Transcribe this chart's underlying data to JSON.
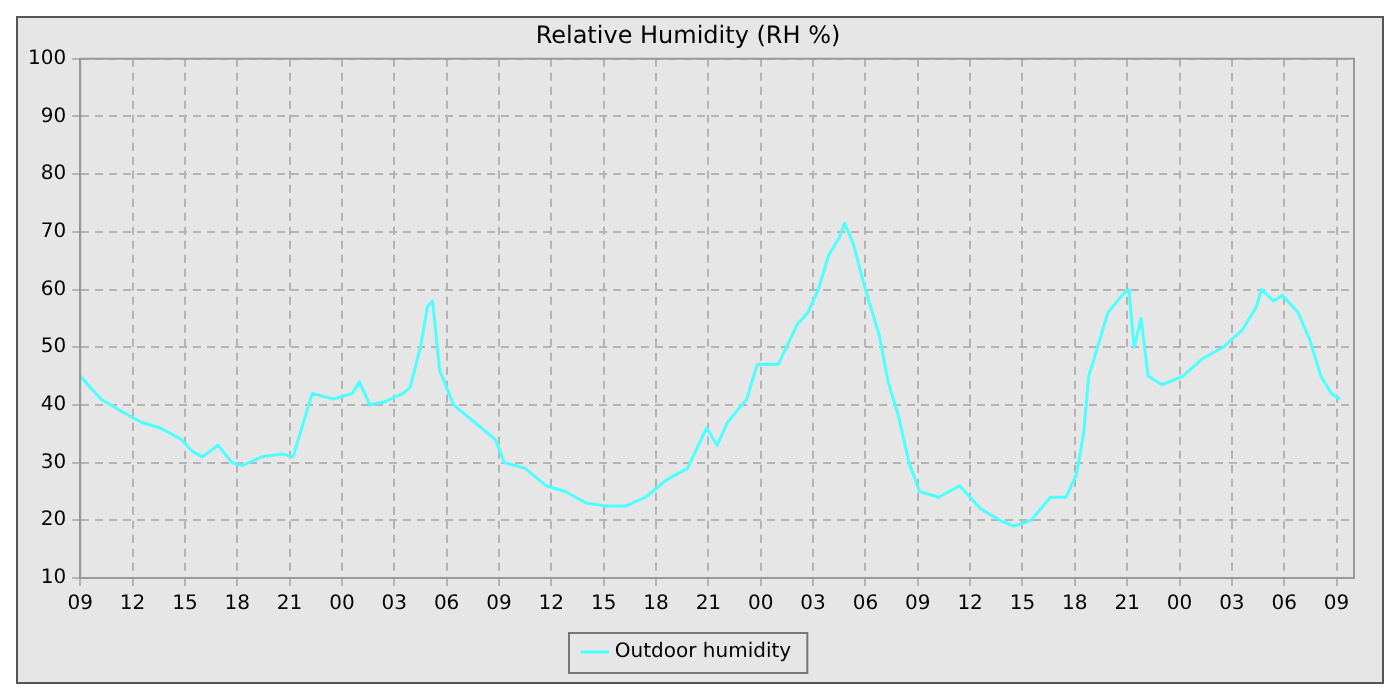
{
  "chart_data": {
    "type": "line",
    "title": "Relative Humidity (RH %)",
    "x": [
      9,
      10.2,
      11.3,
      12.5,
      13.6,
      14.8,
      15.4,
      16,
      16.9,
      17.7,
      18.3,
      19.4,
      20.6,
      21.2,
      21.7,
      22.3,
      23.5,
      24.6,
      25,
      25.6,
      26.4,
      27.5,
      27.9,
      28.5,
      28.9,
      29.2,
      29.6,
      30.4,
      31.6,
      32.8,
      33.3,
      34.5,
      35.7,
      36.8,
      38,
      39.1,
      40.3,
      41.4,
      42.6,
      43.8,
      44.9,
      45.5,
      46.1,
      47.2,
      47.8,
      49,
      50.1,
      50.7,
      51.3,
      51.9,
      52.5,
      52.8,
      53.3,
      54,
      54.8,
      55.3,
      55.9,
      56.5,
      57.1,
      58.2,
      59.4,
      60.6,
      61.7,
      62.5,
      63.5,
      64.6,
      65.5,
      66.1,
      66.5,
      66.8,
      67.3,
      67.9,
      68.7,
      69.1,
      69.4,
      69.8,
      70.2,
      71,
      72.2,
      73.3,
      74.5,
      75.6,
      76.4,
      76.7,
      77.4,
      77.9,
      78.8,
      79.5,
      80.1,
      80.7,
      81.2
    ],
    "series": [
      {
        "name": "Outdoor humidity",
        "color": "#4dffff",
        "values": [
          45,
          41,
          39,
          37,
          36,
          34,
          32,
          31,
          33,
          30,
          29.5,
          31,
          31.5,
          31,
          36,
          42,
          41,
          42,
          44,
          40,
          40.5,
          42,
          43,
          50,
          57,
          58,
          46,
          40,
          37,
          34,
          30,
          29,
          26,
          25,
          23,
          22.5,
          22.5,
          24,
          27,
          29,
          36,
          33,
          37,
          41,
          47,
          47,
          54,
          56,
          60,
          66,
          69,
          71.5,
          68,
          60,
          52,
          44,
          38,
          30,
          25,
          24,
          26,
          22,
          20,
          19,
          20,
          24,
          24,
          28,
          35,
          45,
          50,
          56,
          59,
          60,
          50,
          55,
          45,
          43.5,
          45,
          48,
          50,
          53,
          57,
          60,
          58,
          59,
          56,
          51,
          45,
          42,
          41
        ]
      }
    ],
    "xlim": [
      9,
      82
    ],
    "xticks": [
      {
        "value": 9,
        "label": "09"
      },
      {
        "value": 12,
        "label": "12"
      },
      {
        "value": 15,
        "label": "15"
      },
      {
        "value": 18,
        "label": "18"
      },
      {
        "value": 21,
        "label": "21"
      },
      {
        "value": 24,
        "label": "00"
      },
      {
        "value": 27,
        "label": "03"
      },
      {
        "value": 30,
        "label": "06"
      },
      {
        "value": 33,
        "label": "09"
      },
      {
        "value": 36,
        "label": "12"
      },
      {
        "value": 39,
        "label": "15"
      },
      {
        "value": 42,
        "label": "18"
      },
      {
        "value": 45,
        "label": "21"
      },
      {
        "value": 48,
        "label": "00"
      },
      {
        "value": 51,
        "label": "03"
      },
      {
        "value": 54,
        "label": "06"
      },
      {
        "value": 57,
        "label": "09"
      },
      {
        "value": 60,
        "label": "12"
      },
      {
        "value": 63,
        "label": "15"
      },
      {
        "value": 66,
        "label": "18"
      },
      {
        "value": 69,
        "label": "21"
      },
      {
        "value": 72,
        "label": "00"
      },
      {
        "value": 75,
        "label": "03"
      },
      {
        "value": 78,
        "label": "06"
      },
      {
        "value": 81,
        "label": "09"
      }
    ],
    "ylim": [
      10,
      100
    ],
    "yticks": [
      10,
      20,
      30,
      40,
      50,
      60,
      70,
      80,
      90,
      100
    ],
    "grid": true,
    "legend": "bottom",
    "line_style": "solid",
    "marker": "none"
  }
}
